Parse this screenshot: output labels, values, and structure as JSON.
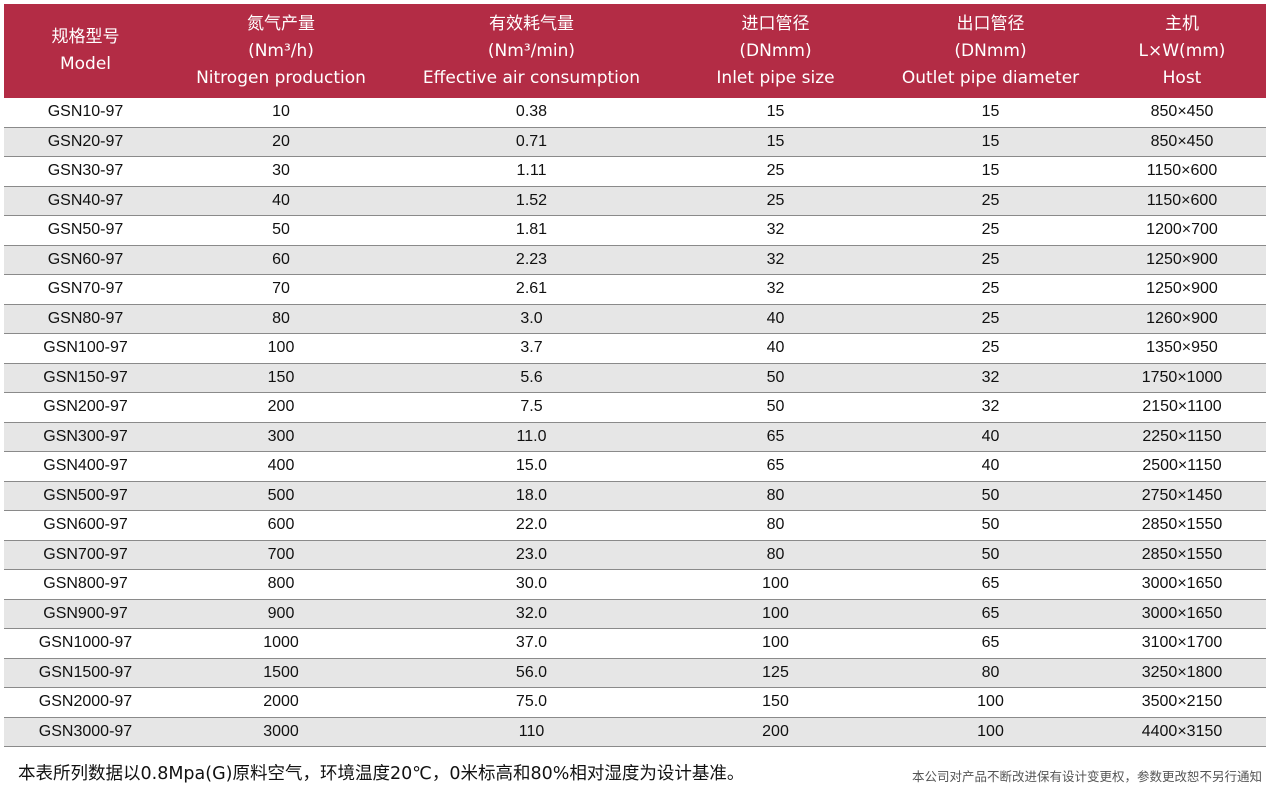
{
  "table": {
    "headers": [
      {
        "lines": [
          "规格型号",
          "Model"
        ]
      },
      {
        "lines": [
          "氮气产量",
          "(Nm³/h)",
          "Nitrogen production"
        ]
      },
      {
        "lines": [
          "有效耗气量",
          "(Nm³/min)",
          "Effective air consumption"
        ]
      },
      {
        "lines": [
          "进口管径",
          "(DNmm)",
          "Inlet pipe size"
        ]
      },
      {
        "lines": [
          "出口管径",
          "(DNmm)",
          "Outlet pipe diameter"
        ]
      },
      {
        "lines": [
          "主机",
          "L×W(mm)",
          "Host"
        ]
      }
    ],
    "rows": [
      [
        "GSN10-97",
        "10",
        "0.38",
        "15",
        "15",
        "850×450"
      ],
      [
        "GSN20-97",
        "20",
        "0.71",
        "15",
        "15",
        "850×450"
      ],
      [
        "GSN30-97",
        "30",
        "1.11",
        "25",
        "15",
        "1150×600"
      ],
      [
        "GSN40-97",
        "40",
        "1.52",
        "25",
        "25",
        "1150×600"
      ],
      [
        "GSN50-97",
        "50",
        "1.81",
        "32",
        "25",
        "1200×700"
      ],
      [
        "GSN60-97",
        "60",
        "2.23",
        "32",
        "25",
        "1250×900"
      ],
      [
        "GSN70-97",
        "70",
        "2.61",
        "32",
        "25",
        "1250×900"
      ],
      [
        "GSN80-97",
        "80",
        "3.0",
        "40",
        "25",
        "1260×900"
      ],
      [
        "GSN100-97",
        "100",
        "3.7",
        "40",
        "25",
        "1350×950"
      ],
      [
        "GSN150-97",
        "150",
        "5.6",
        "50",
        "32",
        "1750×1000"
      ],
      [
        "GSN200-97",
        "200",
        "7.5",
        "50",
        "32",
        "2150×1100"
      ],
      [
        "GSN300-97",
        "300",
        "11.0",
        "65",
        "40",
        "2250×1150"
      ],
      [
        "GSN400-97",
        "400",
        "15.0",
        "65",
        "40",
        "2500×1150"
      ],
      [
        "GSN500-97",
        "500",
        "18.0",
        "80",
        "50",
        "2750×1450"
      ],
      [
        "GSN600-97",
        "600",
        "22.0",
        "80",
        "50",
        "2850×1550"
      ],
      [
        "GSN700-97",
        "700",
        "23.0",
        "80",
        "50",
        "2850×1550"
      ],
      [
        "GSN800-97",
        "800",
        "30.0",
        "100",
        "65",
        "3000×1650"
      ],
      [
        "GSN900-97",
        "900",
        "32.0",
        "100",
        "65",
        "3000×1650"
      ],
      [
        "GSN1000-97",
        "1000",
        "37.0",
        "100",
        "65",
        "3100×1700"
      ],
      [
        "GSN1500-97",
        "1500",
        "56.0",
        "125",
        "80",
        "3250×1800"
      ],
      [
        "GSN2000-97",
        "2000",
        "75.0",
        "150",
        "100",
        "3500×2150"
      ],
      [
        "GSN3000-97",
        "3000",
        "110",
        "200",
        "100",
        "4400×3150"
      ]
    ]
  },
  "footer": {
    "note": "本表所列数据以0.8Mpa(G)原料空气，环境温度20℃，0米标高和80%相对湿度为设计基准。",
    "disclaimer": "本公司对产品不断改进保有设计变更权，参数更改恕不另行通知"
  },
  "colors": {
    "header_bg": "#b32c45",
    "header_text": "#ffffff",
    "stripe": "#e6e6e6"
  }
}
